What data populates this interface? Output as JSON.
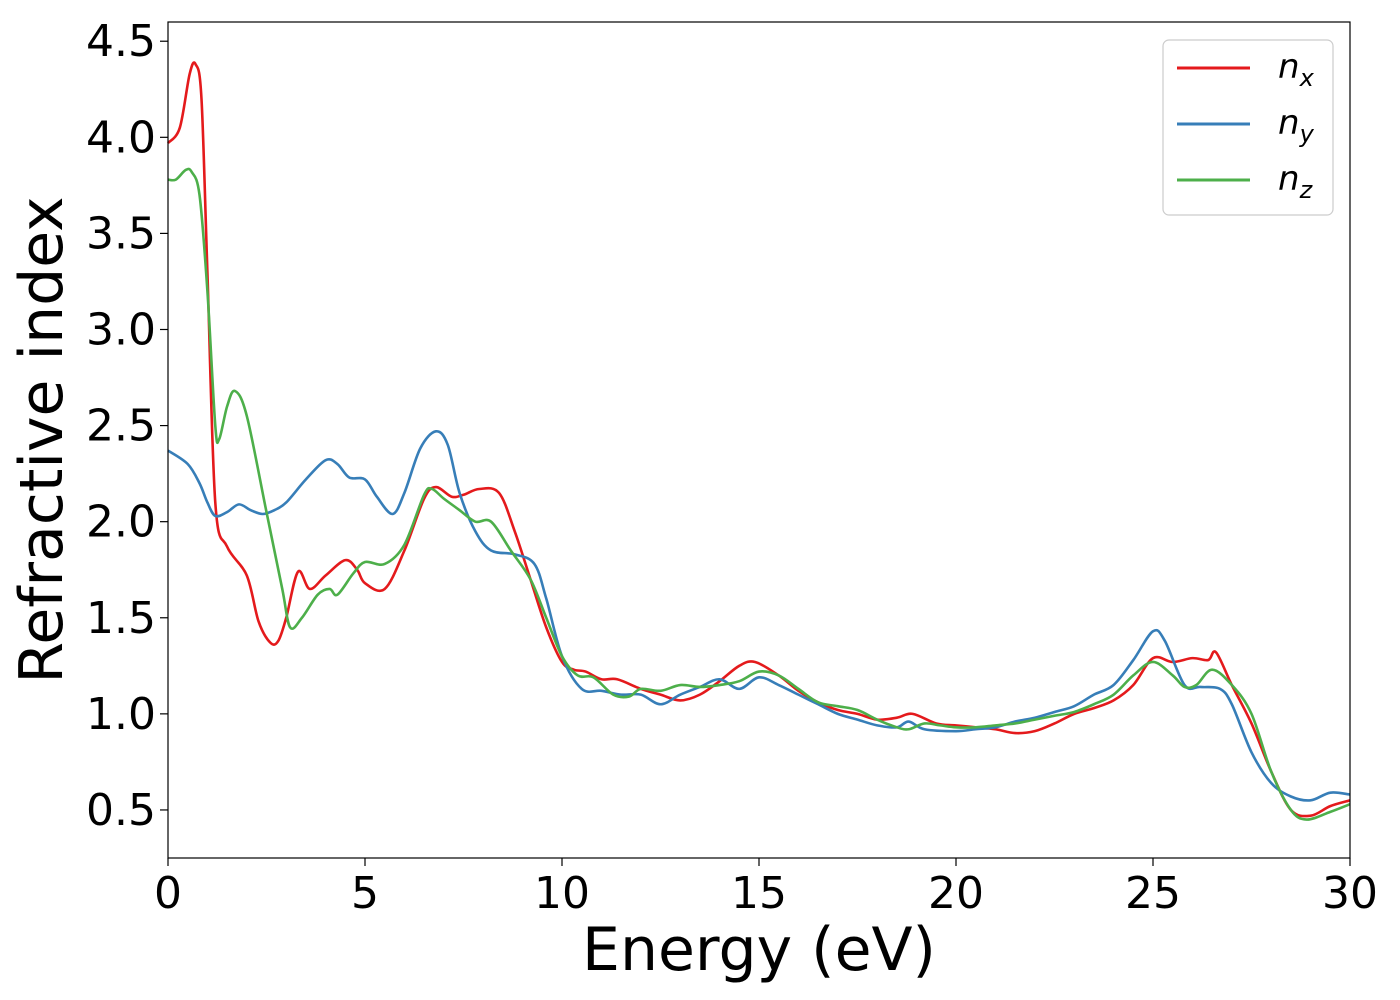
{
  "chart_data": {
    "type": "line",
    "title": "",
    "xlabel": "Energy (eV)",
    "ylabel": "Refractive index",
    "xlim": [
      0,
      30
    ],
    "ylim": [
      0.25,
      4.6
    ],
    "xticks": [
      0,
      5,
      10,
      15,
      20,
      25,
      30
    ],
    "xtick_labels": [
      "0",
      "5",
      "10",
      "15",
      "20",
      "25",
      "30"
    ],
    "yticks": [
      0.5,
      1.0,
      1.5,
      2.0,
      2.5,
      3.0,
      3.5,
      4.0,
      4.5
    ],
    "ytick_labels": [
      "0.5",
      "1.0",
      "1.5",
      "2.0",
      "2.5",
      "3.0",
      "3.5",
      "4.0",
      "4.5"
    ],
    "grid": false,
    "legend_position": "top-right",
    "series": [
      {
        "name": "n",
        "subscript": "x",
        "color": "#e41a1c",
        "points": [
          [
            0,
            3.97
          ],
          [
            0.3,
            4.05
          ],
          [
            0.55,
            4.33
          ],
          [
            0.7,
            4.38
          ],
          [
            0.85,
            4.2
          ],
          [
            1.0,
            3.3
          ],
          [
            1.2,
            2.1
          ],
          [
            1.5,
            1.87
          ],
          [
            2.0,
            1.72
          ],
          [
            2.3,
            1.48
          ],
          [
            2.6,
            1.37
          ],
          [
            2.8,
            1.38
          ],
          [
            3.0,
            1.5
          ],
          [
            3.3,
            1.74
          ],
          [
            3.6,
            1.65
          ],
          [
            4.0,
            1.72
          ],
          [
            4.5,
            1.8
          ],
          [
            4.8,
            1.75
          ],
          [
            5.0,
            1.68
          ],
          [
            5.5,
            1.65
          ],
          [
            6.0,
            1.85
          ],
          [
            6.5,
            2.12
          ],
          [
            6.8,
            2.18
          ],
          [
            7.2,
            2.13
          ],
          [
            7.5,
            2.14
          ],
          [
            7.9,
            2.17
          ],
          [
            8.4,
            2.15
          ],
          [
            8.8,
            1.95
          ],
          [
            9.2,
            1.7
          ],
          [
            9.6,
            1.45
          ],
          [
            10.0,
            1.27
          ],
          [
            10.3,
            1.23
          ],
          [
            10.6,
            1.22
          ],
          [
            11.0,
            1.18
          ],
          [
            11.4,
            1.18
          ],
          [
            12.0,
            1.13
          ],
          [
            12.5,
            1.1
          ],
          [
            13.0,
            1.07
          ],
          [
            13.5,
            1.1
          ],
          [
            14.0,
            1.17
          ],
          [
            14.5,
            1.25
          ],
          [
            14.9,
            1.27
          ],
          [
            15.5,
            1.2
          ],
          [
            16.0,
            1.12
          ],
          [
            16.5,
            1.06
          ],
          [
            17.0,
            1.02
          ],
          [
            17.5,
            1.0
          ],
          [
            18.0,
            0.97
          ],
          [
            18.5,
            0.98
          ],
          [
            18.9,
            1.0
          ],
          [
            19.5,
            0.95
          ],
          [
            20.0,
            0.94
          ],
          [
            20.5,
            0.93
          ],
          [
            21.0,
            0.92
          ],
          [
            21.5,
            0.9
          ],
          [
            22.0,
            0.91
          ],
          [
            22.5,
            0.95
          ],
          [
            23.0,
            1.0
          ],
          [
            23.5,
            1.03
          ],
          [
            24.0,
            1.07
          ],
          [
            24.5,
            1.15
          ],
          [
            25.0,
            1.29
          ],
          [
            25.5,
            1.27
          ],
          [
            26.0,
            1.29
          ],
          [
            26.4,
            1.28
          ],
          [
            26.6,
            1.32
          ],
          [
            27.0,
            1.15
          ],
          [
            27.5,
            0.95
          ],
          [
            28.0,
            0.7
          ],
          [
            28.5,
            0.5
          ],
          [
            29.0,
            0.47
          ],
          [
            29.5,
            0.52
          ],
          [
            30.0,
            0.55
          ]
        ]
      },
      {
        "name": "n",
        "subscript": "y",
        "color": "#377eb8",
        "points": [
          [
            0,
            2.37
          ],
          [
            0.5,
            2.3
          ],
          [
            0.8,
            2.2
          ],
          [
            1.0,
            2.1
          ],
          [
            1.2,
            2.03
          ],
          [
            1.5,
            2.05
          ],
          [
            1.8,
            2.09
          ],
          [
            2.1,
            2.06
          ],
          [
            2.4,
            2.04
          ],
          [
            2.7,
            2.06
          ],
          [
            3.0,
            2.1
          ],
          [
            3.5,
            2.22
          ],
          [
            4.0,
            2.32
          ],
          [
            4.3,
            2.3
          ],
          [
            4.6,
            2.23
          ],
          [
            5.0,
            2.22
          ],
          [
            5.3,
            2.13
          ],
          [
            5.7,
            2.04
          ],
          [
            6.0,
            2.15
          ],
          [
            6.4,
            2.38
          ],
          [
            6.8,
            2.47
          ],
          [
            7.1,
            2.4
          ],
          [
            7.4,
            2.15
          ],
          [
            7.8,
            1.95
          ],
          [
            8.2,
            1.85
          ],
          [
            8.8,
            1.83
          ],
          [
            9.3,
            1.78
          ],
          [
            9.6,
            1.6
          ],
          [
            10.0,
            1.3
          ],
          [
            10.5,
            1.13
          ],
          [
            11.0,
            1.12
          ],
          [
            11.5,
            1.1
          ],
          [
            12.0,
            1.1
          ],
          [
            12.5,
            1.05
          ],
          [
            13.0,
            1.1
          ],
          [
            13.5,
            1.14
          ],
          [
            14.0,
            1.18
          ],
          [
            14.5,
            1.13
          ],
          [
            15.0,
            1.19
          ],
          [
            15.5,
            1.15
          ],
          [
            16.0,
            1.1
          ],
          [
            16.5,
            1.05
          ],
          [
            17.0,
            1.0
          ],
          [
            17.5,
            0.97
          ],
          [
            18.0,
            0.94
          ],
          [
            18.5,
            0.93
          ],
          [
            18.8,
            0.96
          ],
          [
            19.2,
            0.92
          ],
          [
            20.0,
            0.91
          ],
          [
            20.5,
            0.92
          ],
          [
            21.0,
            0.93
          ],
          [
            21.5,
            0.96
          ],
          [
            22.0,
            0.98
          ],
          [
            22.5,
            1.01
          ],
          [
            23.0,
            1.04
          ],
          [
            23.5,
            1.1
          ],
          [
            24.0,
            1.15
          ],
          [
            24.5,
            1.28
          ],
          [
            25.0,
            1.43
          ],
          [
            25.3,
            1.38
          ],
          [
            25.8,
            1.15
          ],
          [
            26.2,
            1.14
          ],
          [
            26.7,
            1.13
          ],
          [
            27.0,
            1.05
          ],
          [
            27.5,
            0.8
          ],
          [
            28.0,
            0.64
          ],
          [
            28.5,
            0.57
          ],
          [
            29.0,
            0.55
          ],
          [
            29.5,
            0.59
          ],
          [
            30.0,
            0.58
          ]
        ]
      },
      {
        "name": "n",
        "subscript": "z",
        "color": "#4daf4a",
        "points": [
          [
            0,
            3.78
          ],
          [
            0.2,
            3.78
          ],
          [
            0.45,
            3.83
          ],
          [
            0.6,
            3.82
          ],
          [
            0.8,
            3.7
          ],
          [
            1.0,
            3.2
          ],
          [
            1.2,
            2.5
          ],
          [
            1.3,
            2.43
          ],
          [
            1.5,
            2.6
          ],
          [
            1.7,
            2.68
          ],
          [
            2.0,
            2.55
          ],
          [
            2.5,
            2.05
          ],
          [
            2.9,
            1.65
          ],
          [
            3.1,
            1.45
          ],
          [
            3.4,
            1.5
          ],
          [
            3.8,
            1.62
          ],
          [
            4.1,
            1.65
          ],
          [
            4.3,
            1.62
          ],
          [
            4.7,
            1.73
          ],
          [
            5.0,
            1.79
          ],
          [
            5.5,
            1.78
          ],
          [
            6.0,
            1.88
          ],
          [
            6.5,
            2.14
          ],
          [
            6.7,
            2.17
          ],
          [
            7.0,
            2.12
          ],
          [
            7.4,
            2.06
          ],
          [
            7.8,
            2.0
          ],
          [
            8.2,
            2.0
          ],
          [
            8.7,
            1.85
          ],
          [
            9.2,
            1.7
          ],
          [
            9.6,
            1.5
          ],
          [
            10.0,
            1.3
          ],
          [
            10.4,
            1.2
          ],
          [
            10.8,
            1.19
          ],
          [
            11.3,
            1.1
          ],
          [
            11.7,
            1.09
          ],
          [
            12.0,
            1.13
          ],
          [
            12.5,
            1.12
          ],
          [
            13.0,
            1.15
          ],
          [
            13.5,
            1.14
          ],
          [
            14.0,
            1.15
          ],
          [
            14.5,
            1.17
          ],
          [
            15.0,
            1.22
          ],
          [
            15.5,
            1.2
          ],
          [
            16.0,
            1.13
          ],
          [
            16.5,
            1.06
          ],
          [
            17.0,
            1.04
          ],
          [
            17.5,
            1.02
          ],
          [
            18.0,
            0.97
          ],
          [
            18.5,
            0.93
          ],
          [
            18.8,
            0.92
          ],
          [
            19.2,
            0.95
          ],
          [
            19.6,
            0.94
          ],
          [
            20.0,
            0.93
          ],
          [
            20.5,
            0.93
          ],
          [
            21.0,
            0.94
          ],
          [
            21.5,
            0.95
          ],
          [
            22.0,
            0.97
          ],
          [
            22.5,
            0.99
          ],
          [
            23.0,
            1.01
          ],
          [
            23.5,
            1.05
          ],
          [
            24.0,
            1.1
          ],
          [
            24.5,
            1.2
          ],
          [
            25.0,
            1.27
          ],
          [
            25.5,
            1.2
          ],
          [
            25.8,
            1.14
          ],
          [
            26.1,
            1.15
          ],
          [
            26.5,
            1.23
          ],
          [
            27.0,
            1.15
          ],
          [
            27.5,
            1.0
          ],
          [
            28.0,
            0.7
          ],
          [
            28.5,
            0.5
          ],
          [
            28.9,
            0.45
          ],
          [
            29.5,
            0.49
          ],
          [
            30.0,
            0.53
          ]
        ]
      }
    ]
  }
}
